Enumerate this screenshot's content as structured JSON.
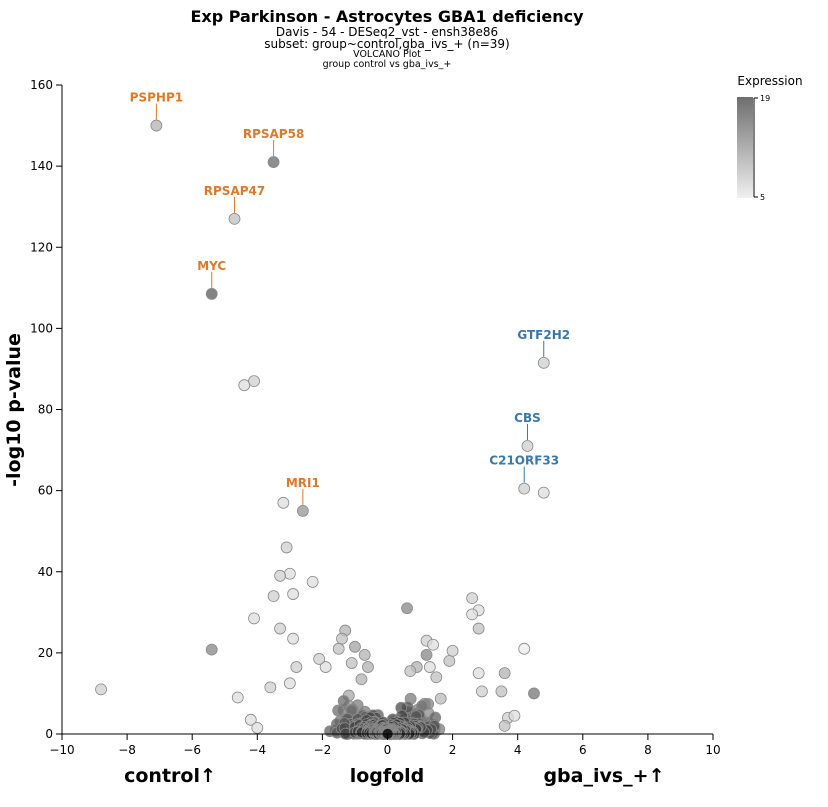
{
  "title": "Exp Parkinson - Astrocytes GBA1 deficiency",
  "subtitle": "Davis - 54 - DESeq2_vst - ensh38e86",
  "subset": "subset: group~control,gba_ivs_+ (n=39)",
  "plot_type": "VOLCANO Plot",
  "comparison": "group control vs gba_ivs_+",
  "xlabel": "logfold",
  "ylabel": "-log10 p-value",
  "left_group": "control↑",
  "right_group": "gba_ivs_+↑",
  "legend": {
    "title": "Expression",
    "max": "19",
    "min": "5"
  },
  "colors": {
    "up_control": "#d97b2b",
    "up_gba": "#3a78a8",
    "point_light": "#e8e8e8",
    "point_dark": "#1a1a1a"
  },
  "chart_data": {
    "type": "scatter",
    "xlim": [
      -10,
      10
    ],
    "ylim": [
      0,
      160
    ],
    "xticks": [
      -10,
      -8,
      -6,
      -4,
      -2,
      0,
      2,
      4,
      6,
      8,
      10
    ],
    "yticks": [
      0,
      20,
      40,
      60,
      80,
      100,
      120,
      140,
      160
    ],
    "color_scale": {
      "name": "Expression",
      "min": 5,
      "max": 19
    },
    "labeled_points": [
      {
        "gene": "PSPHP1",
        "x": -7.1,
        "y": 150,
        "expr": 9,
        "side": "control"
      },
      {
        "gene": "RPSAP58",
        "x": -3.5,
        "y": 141,
        "expr": 14,
        "side": "control"
      },
      {
        "gene": "RPSAP47",
        "x": -4.7,
        "y": 127,
        "expr": 8,
        "side": "control"
      },
      {
        "gene": "MYC",
        "x": -5.4,
        "y": 108.5,
        "expr": 15,
        "side": "control"
      },
      {
        "gene": "MRI1",
        "x": -2.6,
        "y": 55,
        "expr": 11,
        "side": "control"
      },
      {
        "gene": "GTF2H2",
        "x": 4.8,
        "y": 91.5,
        "expr": 7,
        "side": "gba"
      },
      {
        "gene": "CBS",
        "x": 4.3,
        "y": 71,
        "expr": 7,
        "side": "gba"
      },
      {
        "gene": "C21ORF33",
        "x": 4.2,
        "y": 60.5,
        "expr": 7,
        "side": "gba"
      }
    ],
    "points": [
      {
        "x": -4.4,
        "y": 86,
        "expr": 6
      },
      {
        "x": -4.1,
        "y": 87,
        "expr": 7
      },
      {
        "x": 4.8,
        "y": 59.5,
        "expr": 6
      },
      {
        "x": -3.2,
        "y": 57,
        "expr": 6
      },
      {
        "x": -3.1,
        "y": 46,
        "expr": 7
      },
      {
        "x": -3.0,
        "y": 39.5,
        "expr": 6
      },
      {
        "x": -3.3,
        "y": 39,
        "expr": 7
      },
      {
        "x": -2.3,
        "y": 37.5,
        "expr": 6
      },
      {
        "x": -2.9,
        "y": 34.5,
        "expr": 6
      },
      {
        "x": -3.5,
        "y": 34,
        "expr": 7
      },
      {
        "x": -4.1,
        "y": 28.5,
        "expr": 6
      },
      {
        "x": -3.3,
        "y": 26,
        "expr": 7
      },
      {
        "x": -2.9,
        "y": 23.5,
        "expr": 6
      },
      {
        "x": -5.4,
        "y": 20.8,
        "expr": 12
      },
      {
        "x": -8.8,
        "y": 11,
        "expr": 7
      },
      {
        "x": -4.6,
        "y": 9,
        "expr": 6
      },
      {
        "x": 0.6,
        "y": 31,
        "expr": 12
      },
      {
        "x": 2.6,
        "y": 33.5,
        "expr": 7
      },
      {
        "x": 2.8,
        "y": 30.5,
        "expr": 6
      },
      {
        "x": 2.6,
        "y": 29.5,
        "expr": 6
      },
      {
        "x": 2.8,
        "y": 26,
        "expr": 8
      },
      {
        "x": 4.2,
        "y": 21,
        "expr": 5
      },
      {
        "x": 4.5,
        "y": 10,
        "expr": 13
      },
      {
        "x": 3.6,
        "y": 15,
        "expr": 9
      },
      {
        "x": 1.2,
        "y": 23,
        "expr": 7
      },
      {
        "x": 1.4,
        "y": 22,
        "expr": 6
      },
      {
        "x": -1.3,
        "y": 25.5,
        "expr": 9
      },
      {
        "x": -1.4,
        "y": 23.5,
        "expr": 8
      },
      {
        "x": -1.0,
        "y": 21.5,
        "expr": 10
      },
      {
        "x": -0.7,
        "y": 19.5,
        "expr": 9
      },
      {
        "x": 2.0,
        "y": 20.5,
        "expr": 7
      },
      {
        "x": 1.2,
        "y": 19.5,
        "expr": 12
      },
      {
        "x": 1.9,
        "y": 18,
        "expr": 8
      },
      {
        "x": 0.9,
        "y": 16.5,
        "expr": 9
      },
      {
        "x": 1.3,
        "y": 16.5,
        "expr": 6
      },
      {
        "x": -1.9,
        "y": 16.5,
        "expr": 6
      },
      {
        "x": -2.8,
        "y": 16.5,
        "expr": 7
      },
      {
        "x": -1.1,
        "y": 17.5,
        "expr": 8
      },
      {
        "x": -0.6,
        "y": 16.5,
        "expr": 9
      },
      {
        "x": 2.8,
        "y": 15,
        "expr": 6
      },
      {
        "x": -3.6,
        "y": 11.5,
        "expr": 7
      },
      {
        "x": -3.0,
        "y": 12.5,
        "expr": 6
      },
      {
        "x": 3.5,
        "y": 10.5,
        "expr": 8
      },
      {
        "x": 2.9,
        "y": 10.5,
        "expr": 7
      },
      {
        "x": -4.2,
        "y": 3.5,
        "expr": 6
      },
      {
        "x": -4.0,
        "y": 1.5,
        "expr": 6
      },
      {
        "x": 3.7,
        "y": 4,
        "expr": 7
      },
      {
        "x": 3.6,
        "y": 2,
        "expr": 8
      },
      {
        "x": 3.9,
        "y": 4.5,
        "expr": 6
      },
      {
        "x": -2.1,
        "y": 18.5,
        "expr": 7
      },
      {
        "x": -1.5,
        "y": 21,
        "expr": 8
      },
      {
        "x": 1.5,
        "y": 14,
        "expr": 8
      },
      {
        "x": -0.8,
        "y": 13.5,
        "expr": 9
      },
      {
        "x": 0.7,
        "y": 15.5,
        "expr": 8
      }
    ]
  }
}
